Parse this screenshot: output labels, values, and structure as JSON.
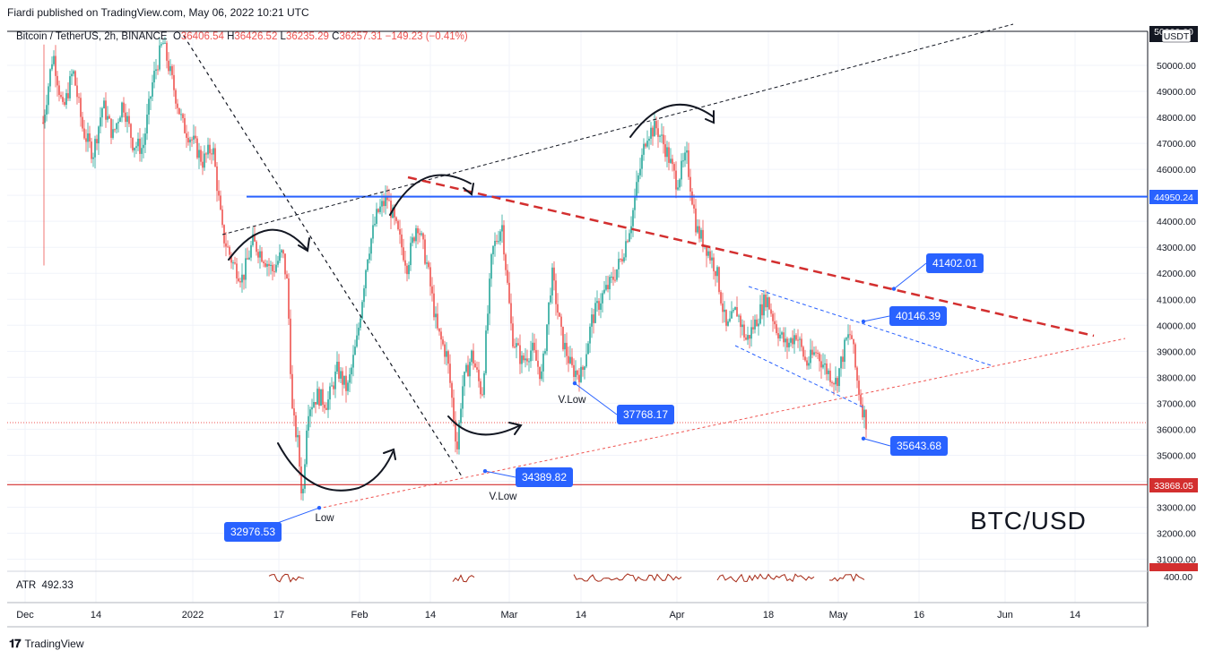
{
  "header": {
    "published": "Fiardi published on TradingView.com, May 06, 2022 10:21 UTC"
  },
  "legend": {
    "symbol": "Bitcoin / TetherUS, 2h, BINANCE",
    "open_label": "O",
    "open": "36406.54",
    "high_label": "H",
    "high": "36426.52",
    "low_label": "L",
    "low": "36235.29",
    "close_label": "C",
    "close": "36257.31",
    "change": "−149.23 (−0.41%)"
  },
  "watermark": "BTC/USD",
  "atr": {
    "label": "ATR",
    "value": "492.33",
    "axis_tick": "400.00"
  },
  "footer": {
    "brand": "TradingView"
  },
  "colors": {
    "up": "#26a69a",
    "down": "#ef5350",
    "blue_line": "#2962ff",
    "red_line": "#d32f2f",
    "callout": "#2962ff"
  },
  "chart_data": {
    "type": "candlestick",
    "symbol": "BTCUSDT",
    "timeframe": "2h",
    "ylim": [
      30000,
      51500
    ],
    "y_ticks": [
      "31000.00",
      "32000.00",
      "33000.00",
      "34000.00",
      "35000.00",
      "36000.00",
      "37000.00",
      "38000.00",
      "39000.00",
      "40000.00",
      "41000.00",
      "42000.00",
      "43000.00",
      "44000.00",
      "45000.00",
      "46000.00",
      "47000.00",
      "48000.00",
      "49000.00",
      "50000.00"
    ],
    "x_ticks": [
      "Dec",
      "14",
      "2022",
      "17",
      "Feb",
      "14",
      "Mar",
      "14",
      "Apr",
      "18",
      "May",
      "16",
      "Jun",
      "14"
    ],
    "price_path": [
      [
        0,
        47800
      ],
      [
        2,
        50500
      ],
      [
        4,
        48200
      ],
      [
        6,
        49800
      ],
      [
        8,
        47500
      ],
      [
        10,
        46600
      ],
      [
        12,
        48500
      ],
      [
        14,
        47300
      ],
      [
        16,
        48600
      ],
      [
        18,
        47000
      ],
      [
        20,
        46800
      ],
      [
        22,
        49400
      ],
      [
        24,
        50900
      ],
      [
        26,
        49300
      ],
      [
        28,
        47700
      ],
      [
        30,
        47100
      ],
      [
        32,
        46300
      ],
      [
        34,
        46900
      ],
      [
        36,
        43500
      ],
      [
        38,
        42400
      ],
      [
        40,
        41800
      ],
      [
        42,
        43200
      ],
      [
        44,
        42700
      ],
      [
        46,
        42100
      ],
      [
        48,
        42800
      ],
      [
        49,
        41500
      ],
      [
        50,
        36500
      ],
      [
        51,
        35600
      ],
      [
        52,
        33200
      ],
      [
        53,
        36800
      ],
      [
        55,
        37300
      ],
      [
        57,
        37000
      ],
      [
        59,
        38300
      ],
      [
        61,
        37500
      ],
      [
        63,
        39500
      ],
      [
        65,
        42700
      ],
      [
        67,
        44300
      ],
      [
        69,
        44900
      ],
      [
        71,
        43600
      ],
      [
        73,
        42300
      ],
      [
        75,
        44000
      ],
      [
        77,
        42300
      ],
      [
        79,
        39800
      ],
      [
        81,
        38800
      ],
      [
        82,
        37100
      ],
      [
        83,
        35200
      ],
      [
        84,
        37600
      ],
      [
        86,
        38900
      ],
      [
        88,
        37300
      ],
      [
        90,
        42800
      ],
      [
        92,
        43900
      ],
      [
        94,
        39600
      ],
      [
        96,
        38600
      ],
      [
        98,
        39100
      ],
      [
        100,
        38000
      ],
      [
        102,
        42000
      ],
      [
        104,
        39500
      ],
      [
        106,
        38300
      ],
      [
        108,
        38100
      ],
      [
        110,
        40200
      ],
      [
        112,
        41100
      ],
      [
        114,
        41700
      ],
      [
        116,
        42600
      ],
      [
        118,
        44100
      ],
      [
        119,
        45300
      ],
      [
        121,
        47400
      ],
      [
        123,
        47600
      ],
      [
        125,
        46700
      ],
      [
        127,
        45500
      ],
      [
        129,
        46500
      ],
      [
        131,
        43700
      ],
      [
        133,
        43000
      ],
      [
        135,
        42100
      ],
      [
        137,
        39800
      ],
      [
        139,
        40600
      ],
      [
        141,
        39400
      ],
      [
        143,
        40200
      ],
      [
        145,
        41100
      ],
      [
        147,
        39900
      ],
      [
        149,
        39200
      ],
      [
        151,
        39700
      ],
      [
        153,
        38500
      ],
      [
        155,
        39000
      ],
      [
        157,
        38300
      ],
      [
        159,
        37800
      ],
      [
        161,
        39400
      ],
      [
        162,
        39700
      ],
      [
        163,
        38100
      ],
      [
        164,
        37000
      ],
      [
        165,
        36300
      ]
    ],
    "horizontal_lines": [
      {
        "value": 44950.24,
        "label": "44950.24",
        "color": "#2962ff"
      },
      {
        "value": 33868.05,
        "label": "33868.05",
        "color": "#d32f2f"
      }
    ],
    "annotations": [
      {
        "text": "32976.53",
        "price": 32976.53,
        "label_below": "Low"
      },
      {
        "text": "34389.82",
        "price": 34389.82,
        "label_below": "V.Low"
      },
      {
        "text": "37768.17",
        "price": 37768.17,
        "label_below": "V.Low"
      },
      {
        "text": "41402.01",
        "price": 41402.01
      },
      {
        "text": "40146.39",
        "price": 40146.39
      },
      {
        "text": "35643.68",
        "price": 35643.68
      }
    ],
    "last_price_label": "50000.00",
    "axis_unit": "USDT"
  }
}
